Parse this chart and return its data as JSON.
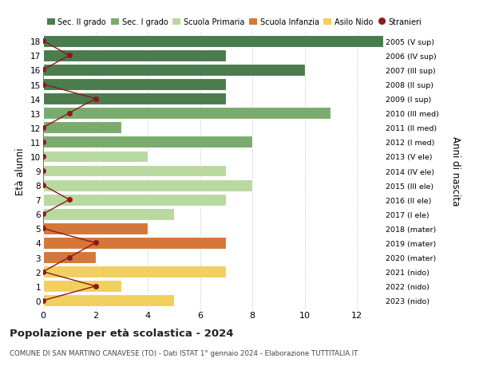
{
  "ages": [
    18,
    17,
    16,
    15,
    14,
    13,
    12,
    11,
    10,
    9,
    8,
    7,
    6,
    5,
    4,
    3,
    2,
    1,
    0
  ],
  "right_labels": [
    "2005 (V sup)",
    "2006 (IV sup)",
    "2007 (III sup)",
    "2008 (II sup)",
    "2009 (I sup)",
    "2010 (III med)",
    "2011 (II med)",
    "2012 (I med)",
    "2013 (V ele)",
    "2014 (IV ele)",
    "2015 (III ele)",
    "2016 (II ele)",
    "2017 (I ele)",
    "2018 (mater)",
    "2019 (mater)",
    "2020 (mater)",
    "2021 (nido)",
    "2022 (nido)",
    "2023 (nido)"
  ],
  "bar_values": [
    13,
    7,
    10,
    7,
    7,
    11,
    3,
    8,
    4,
    7,
    8,
    7,
    5,
    4,
    7,
    2,
    7,
    3,
    5
  ],
  "bar_colors": [
    "#4a7c4e",
    "#4a7c4e",
    "#4a7c4e",
    "#4a7c4e",
    "#4a7c4e",
    "#7aab6e",
    "#7aab6e",
    "#7aab6e",
    "#b8d9a0",
    "#b8d9a0",
    "#b8d9a0",
    "#b8d9a0",
    "#b8d9a0",
    "#d4773a",
    "#d4773a",
    "#d4773a",
    "#f2d060",
    "#f2d060",
    "#f2d060"
  ],
  "stranieri_values": [
    0,
    1,
    0,
    0,
    2,
    1,
    0,
    0,
    0,
    0,
    0,
    1,
    0,
    0,
    2,
    1,
    0,
    2,
    0
  ],
  "stranieri_color": "#8b1a1a",
  "xlim": [
    0,
    13
  ],
  "xticks": [
    0,
    2,
    4,
    6,
    8,
    10,
    12
  ],
  "legend_labels": [
    "Sec. II grado",
    "Sec. I grado",
    "Scuola Primaria",
    "Scuola Infanzia",
    "Asilo Nido",
    "Stranieri"
  ],
  "legend_colors": [
    "#4a7c4e",
    "#7aab6e",
    "#b8d9a0",
    "#d4773a",
    "#f2d060",
    "#8b1a1a"
  ],
  "ylabel": "Età alunni",
  "right_ylabel": "Anni di nascita",
  "title": "Popolazione per età scolastica - 2024",
  "subtitle": "COMUNE DI SAN MARTINO CANAVESE (TO) - Dati ISTAT 1° gennaio 2024 - Elaborazione TUTTITALIA.IT",
  "bg_color": "#ffffff",
  "bar_height": 0.82,
  "grid_color": "#cccccc"
}
